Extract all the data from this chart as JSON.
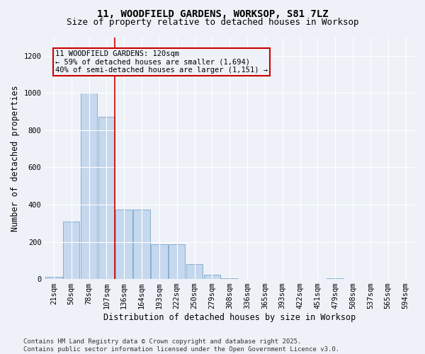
{
  "title_line1": "11, WOODFIELD GARDENS, WORKSOP, S81 7LZ",
  "title_line2": "Size of property relative to detached houses in Worksop",
  "xlabel": "Distribution of detached houses by size in Worksop",
  "ylabel": "Number of detached properties",
  "categories": [
    "21sqm",
    "50sqm",
    "78sqm",
    "107sqm",
    "136sqm",
    "164sqm",
    "193sqm",
    "222sqm",
    "250sqm",
    "279sqm",
    "308sqm",
    "336sqm",
    "365sqm",
    "393sqm",
    "422sqm",
    "451sqm",
    "479sqm",
    "508sqm",
    "537sqm",
    "565sqm",
    "594sqm"
  ],
  "values": [
    10,
    310,
    1000,
    870,
    375,
    375,
    185,
    185,
    80,
    25,
    5,
    0,
    0,
    0,
    0,
    0,
    5,
    0,
    0,
    0,
    0
  ],
  "bar_color": "#c5d8ed",
  "bar_edgecolor": "#7ba7c9",
  "vline_x_index": 3,
  "vline_color": "#cc0000",
  "annotation_text": "11 WOODFIELD GARDENS: 120sqm\n← 59% of detached houses are smaller (1,694)\n40% of semi-detached houses are larger (1,151) →",
  "annotation_box_edgecolor": "#cc0000",
  "ylim": [
    0,
    1300
  ],
  "yticks": [
    0,
    200,
    400,
    600,
    800,
    1000,
    1200
  ],
  "footnote": "Contains HM Land Registry data © Crown copyright and database right 2025.\nContains public sector information licensed under the Open Government Licence v3.0.",
  "background_color": "#eef2f8",
  "grid_color": "#ffffff",
  "title_fontsize": 10,
  "subtitle_fontsize": 9,
  "axis_label_fontsize": 8.5,
  "tick_fontsize": 7.5,
  "annotation_fontsize": 7.5,
  "footnote_fontsize": 6.5
}
